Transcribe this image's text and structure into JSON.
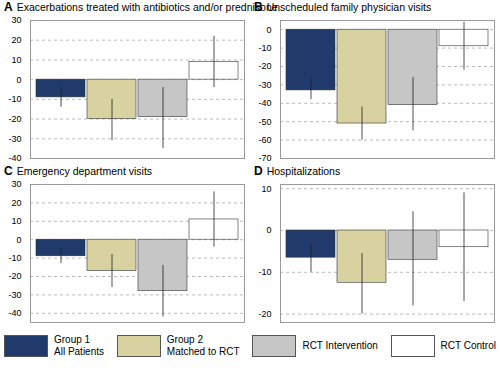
{
  "chart_data": [
    {
      "type": "bar",
      "title": "A Exacerbations treated with antibiotics and/or prednisone",
      "categories": [
        "Group 1\nAll Patients",
        "Group 2\nMatched to RCT",
        "RCT Intervention",
        "RCT Control"
      ],
      "values": [
        -9,
        -20,
        -19,
        9
      ],
      "error_low": [
        -14,
        -31,
        -35,
        -4
      ],
      "error_high": [
        -4,
        -10,
        -4,
        22
      ],
      "colors": [
        "#1f3a6b",
        "#d8d2a0",
        "#c6c6c6",
        "#ffffff"
      ],
      "ylim": [
        -40,
        30
      ],
      "yticks": [
        -40,
        -30,
        -20,
        -10,
        0,
        10,
        20,
        30
      ],
      "grid": true,
      "tick_labels": "y",
      "legend": "bottom"
    },
    {
      "type": "bar",
      "title": "B Unscheduled family physician visits",
      "categories": [
        "Group 1\nAll Patients",
        "Group 2\nMatched to RCT",
        "RCT Intervention",
        "RCT Control"
      ],
      "values": [
        -33,
        -51,
        -41,
        -9
      ],
      "error_low": [
        -38,
        -60,
        -55,
        -22
      ],
      "error_high": [
        -27,
        -42,
        -26,
        4
      ],
      "colors": [
        "#1f3a6b",
        "#d8d2a0",
        "#c6c6c6",
        "#ffffff"
      ],
      "ylim": [
        -70,
        5
      ],
      "yticks": [
        -70,
        -60,
        -50,
        -40,
        -30,
        -20,
        -10,
        0
      ],
      "grid": true,
      "tick_labels": "y",
      "legend": "bottom"
    },
    {
      "type": "bar",
      "title": "C Emergency department visits",
      "categories": [
        "Group 1\nAll Patients",
        "Group 2\nMatched to RCT",
        "RCT Intervention",
        "RCT Control"
      ],
      "values": [
        -9,
        -17,
        -28,
        11
      ],
      "error_low": [
        -13,
        -26,
        -42,
        -4
      ],
      "error_high": [
        -5,
        -8,
        -14,
        26
      ],
      "colors": [
        "#1f3a6b",
        "#d8d2a0",
        "#c6c6c6",
        "#ffffff"
      ],
      "ylim": [
        -45,
        30
      ],
      "yticks": [
        -40,
        -30,
        -20,
        -10,
        0,
        10,
        20,
        30
      ],
      "grid": true,
      "tick_labels": "y",
      "legend": "bottom"
    },
    {
      "type": "bar",
      "title": "D Hospitalizations",
      "categories": [
        "Group 1\nAll Patients",
        "Group 2\nMatched to RCT",
        "RCT Intervention",
        "RCT Control"
      ],
      "values": [
        -6.5,
        -12.5,
        -7,
        -4
      ],
      "error_low": [
        -10,
        -20,
        -18,
        -17
      ],
      "error_high": [
        -3.5,
        -5.5,
        4.5,
        9
      ],
      "colors": [
        "#1f3a6b",
        "#d8d2a0",
        "#c6c6c6",
        "#ffffff"
      ],
      "ylim": [
        -22,
        11
      ],
      "yticks": [
        -20,
        -10,
        0,
        10
      ],
      "grid": true,
      "tick_labels": "y",
      "legend": "bottom"
    }
  ]
}
